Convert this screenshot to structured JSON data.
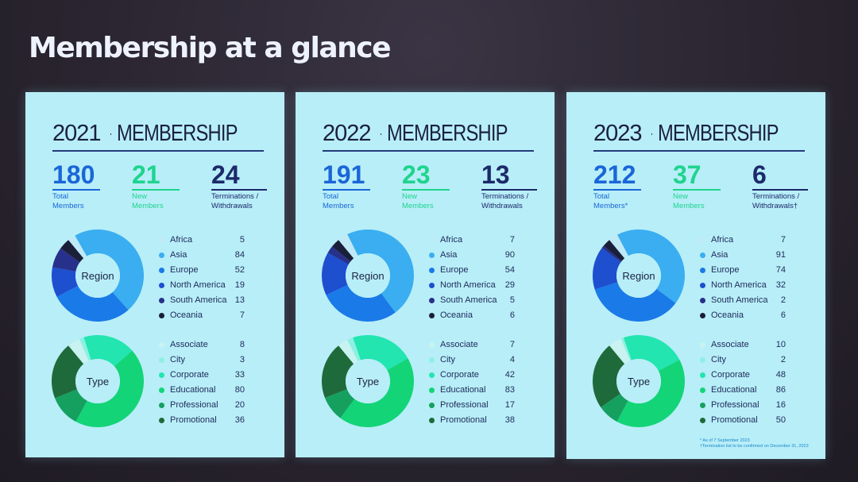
{
  "title": "Membership at a glance",
  "cards": [
    {
      "year": "2021",
      "heading": "MEMBERSHIP",
      "total": {
        "value": "180",
        "label": "Total Members"
      },
      "new": {
        "value": "21",
        "label": "New Members"
      },
      "term": {
        "value": "24",
        "label1": "Terminations /",
        "label2": "Withdrawals"
      },
      "region_label": "Region",
      "type_label": "Type",
      "region": [
        {
          "name": "Africa",
          "value": 5
        },
        {
          "name": "Asia",
          "value": 84
        },
        {
          "name": "Europe",
          "value": 52
        },
        {
          "name": "North America",
          "value": 19
        },
        {
          "name": "South America",
          "value": 13
        },
        {
          "name": "Oceania",
          "value": 7
        }
      ],
      "type": [
        {
          "name": "Associate",
          "value": 8
        },
        {
          "name": "City",
          "value": 3
        },
        {
          "name": "Corporate",
          "value": 33
        },
        {
          "name": "Educational",
          "value": 80
        },
        {
          "name": "Professional",
          "value": 20
        },
        {
          "name": "Promotional",
          "value": 36
        }
      ]
    },
    {
      "year": "2022",
      "heading": "MEMBERSHIP",
      "total": {
        "value": "191",
        "label": "Total Members"
      },
      "new": {
        "value": "23",
        "label": "New Members"
      },
      "term": {
        "value": "13",
        "label1": "Terminations /",
        "label2": "Withdrawals"
      },
      "region_label": "Region",
      "type_label": "Type",
      "region": [
        {
          "name": "Africa",
          "value": 7
        },
        {
          "name": "Asia",
          "value": 90
        },
        {
          "name": "Europe",
          "value": 54
        },
        {
          "name": "North America",
          "value": 29
        },
        {
          "name": "South America",
          "value": 5
        },
        {
          "name": "Oceania",
          "value": 6
        }
      ],
      "type": [
        {
          "name": "Associate",
          "value": 7
        },
        {
          "name": "City",
          "value": 4
        },
        {
          "name": "Corporate",
          "value": 42
        },
        {
          "name": "Educational",
          "value": 83
        },
        {
          "name": "Professional",
          "value": 17
        },
        {
          "name": "Promotional",
          "value": 38
        }
      ]
    },
    {
      "year": "2023",
      "heading": "MEMBERSHIP",
      "total": {
        "value": "212",
        "label": "Total Members*"
      },
      "new": {
        "value": "37",
        "label": "New Members"
      },
      "term": {
        "value": "6",
        "label1": "Terminations /",
        "label2": "Withdrawals†"
      },
      "region_label": "Region",
      "type_label": "Type",
      "region": [
        {
          "name": "Africa",
          "value": 7
        },
        {
          "name": "Asia",
          "value": 91
        },
        {
          "name": "Europe",
          "value": 74
        },
        {
          "name": "North America",
          "value": 32
        },
        {
          "name": "South America",
          "value": 2
        },
        {
          "name": "Oceania",
          "value": 6
        }
      ],
      "type": [
        {
          "name": "Associate",
          "value": 10
        },
        {
          "name": "City",
          "value": 2
        },
        {
          "name": "Corporate",
          "value": 48
        },
        {
          "name": "Educational",
          "value": 86
        },
        {
          "name": "Professional",
          "value": 16
        },
        {
          "name": "Promotional",
          "value": 50
        }
      ],
      "footnote1": "* As of 7 September 2023",
      "footnote2": "†Termination list to be confirmed on December 31, 2023"
    }
  ],
  "colors": {
    "region": [
      "#bfe9f7",
      "#3aaef0",
      "#1a7ae8",
      "#1d4fcf",
      "#27308a",
      "#1a1f3a"
    ],
    "type": [
      "#c8f3f0",
      "#8df0e2",
      "#22e5b0",
      "#14d478",
      "#16a060",
      "#1f6a3a"
    ],
    "card_bg": "#b8eef8"
  }
}
